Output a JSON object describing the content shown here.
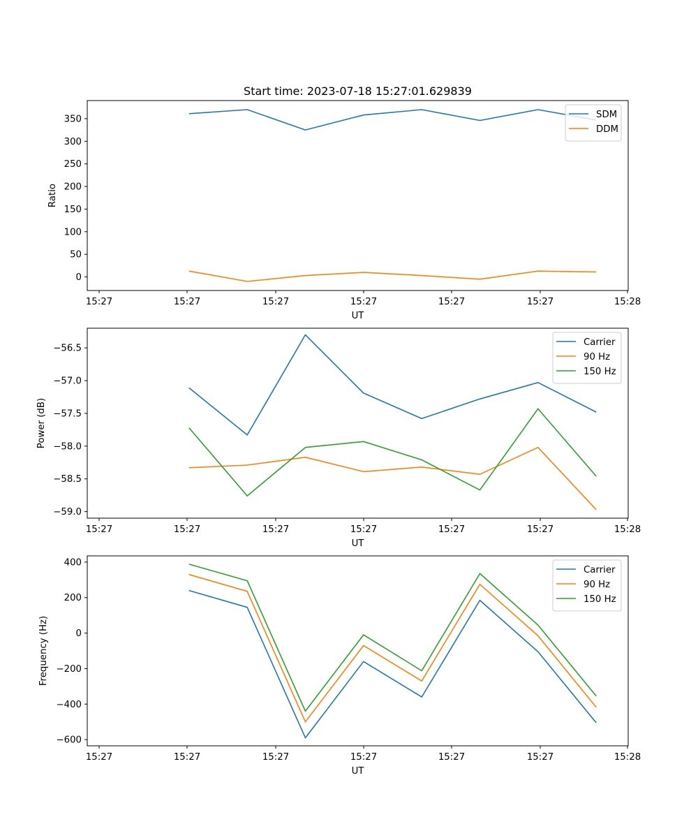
{
  "figure": {
    "title": "Start time: 2023-07-18 15:27:01.629839",
    "colors": {
      "blue": "#1f77b4",
      "orange": "#ff7f0e",
      "green": "#2ca02c"
    }
  },
  "chart_data": [
    {
      "type": "line",
      "title": "Start time: 2023-07-18 15:27:01.629839",
      "xlabel": "UT",
      "ylabel": "Ratio",
      "x_ticks": [
        "15:27",
        "15:27",
        "15:27",
        "15:27",
        "15:27",
        "15:27",
        "15:28"
      ],
      "x_index": [
        1,
        2,
        3,
        4,
        5,
        6,
        7,
        8
      ],
      "xlim": [
        -0.75,
        8.55
      ],
      "ylim": [
        -30,
        390
      ],
      "y_ticks": [
        0,
        50,
        100,
        150,
        200,
        250,
        300,
        350
      ],
      "y_tick_labels": [
        "0",
        "50",
        "100",
        "150",
        "200",
        "250",
        "300",
        "350"
      ],
      "legend_position": "top-right",
      "series": [
        {
          "name": "SDM",
          "color": "#1f77b4",
          "values": [
            361,
            370,
            325,
            358,
            370,
            346,
            370,
            347
          ]
        },
        {
          "name": "DDM",
          "color": "#ff7f0e",
          "values": [
            13,
            -10,
            3,
            10,
            3,
            -5,
            13,
            11
          ]
        }
      ]
    },
    {
      "type": "line",
      "xlabel": "UT",
      "ylabel": "Power (dB)",
      "x_ticks": [
        "15:27",
        "15:27",
        "15:27",
        "15:27",
        "15:27",
        "15:27",
        "15:28"
      ],
      "x_index": [
        1,
        2,
        3,
        4,
        5,
        6,
        7,
        8
      ],
      "xlim": [
        -0.75,
        8.55
      ],
      "ylim": [
        -59.1,
        -56.2
      ],
      "y_ticks": [
        -59.0,
        -58.5,
        -58.0,
        -57.5,
        -57.0,
        -56.5
      ],
      "y_tick_labels": [
        "−59.0",
        "−58.5",
        "−58.0",
        "−57.5",
        "−57.0",
        "−56.5"
      ],
      "legend_position": "top-right",
      "series": [
        {
          "name": "Carrier",
          "color": "#1f77b4",
          "values": [
            -57.11,
            -57.83,
            -56.3,
            -57.19,
            -57.58,
            -57.28,
            -57.03,
            -57.48
          ]
        },
        {
          "name": "90 Hz",
          "color": "#ff7f0e",
          "values": [
            -58.33,
            -58.29,
            -58.17,
            -58.39,
            -58.32,
            -58.43,
            -58.02,
            -58.97
          ]
        },
        {
          "name": "150 Hz",
          "color": "#2ca02c",
          "values": [
            -57.72,
            -58.76,
            -58.02,
            -57.93,
            -58.21,
            -58.67,
            -57.43,
            -58.46
          ]
        }
      ]
    },
    {
      "type": "line",
      "xlabel": "UT",
      "ylabel": "Frequency (Hz)",
      "x_ticks": [
        "15:27",
        "15:27",
        "15:27",
        "15:27",
        "15:27",
        "15:27",
        "15:28"
      ],
      "x_index": [
        1,
        2,
        3,
        4,
        5,
        6,
        7,
        8
      ],
      "xlim": [
        -0.75,
        8.55
      ],
      "ylim": [
        -635,
        435
      ],
      "y_ticks": [
        -600,
        -400,
        -200,
        0,
        200,
        400
      ],
      "y_tick_labels": [
        "−600",
        "−400",
        "−200",
        "0",
        "200",
        "400"
      ],
      "legend_position": "top-right",
      "series": [
        {
          "name": "Carrier",
          "color": "#1f77b4",
          "values": [
            240,
            145,
            -590,
            -160,
            -360,
            185,
            -105,
            -505
          ]
        },
        {
          "name": "90 Hz",
          "color": "#ff7f0e",
          "values": [
            330,
            235,
            -500,
            -70,
            -270,
            275,
            -15,
            -418
          ]
        },
        {
          "name": "150 Hz",
          "color": "#2ca02c",
          "values": [
            388,
            295,
            -440,
            -10,
            -212,
            335,
            45,
            -355
          ]
        }
      ]
    }
  ]
}
